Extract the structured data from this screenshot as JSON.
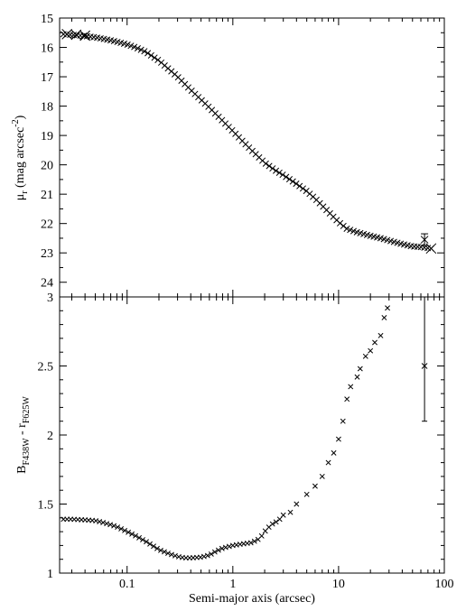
{
  "chart_data": [
    {
      "type": "scatter",
      "panel": "top",
      "title": "",
      "xlabel": "Semi-major axis (arcsec)",
      "ylabel": "μ_r (mag arcsec^-2)",
      "ylabel_parts": {
        "base": "μ",
        "sub": "r",
        "mid": " (mag arcsec",
        "sup": "-2",
        "end": ")"
      },
      "xscale": "log",
      "xlim": [
        0.023,
        100
      ],
      "ylim": [
        24.5,
        15
      ],
      "y_inverted": true,
      "y_ticks": [
        "15",
        "16",
        "17",
        "18",
        "19",
        "20",
        "21",
        "22",
        "23",
        "24"
      ],
      "marker": "x",
      "grid": false,
      "profile": [
        [
          0.025,
          15.55
        ],
        [
          0.03,
          15.57
        ],
        [
          0.04,
          15.61
        ],
        [
          0.05,
          15.66
        ],
        [
          0.06,
          15.71
        ],
        [
          0.07,
          15.76
        ],
        [
          0.08,
          15.81
        ],
        [
          0.1,
          15.9
        ],
        [
          0.12,
          16.0
        ],
        [
          0.15,
          16.15
        ],
        [
          0.2,
          16.45
        ],
        [
          0.25,
          16.75
        ],
        [
          0.3,
          17.0
        ],
        [
          0.4,
          17.45
        ],
        [
          0.5,
          17.78
        ],
        [
          0.6,
          18.05
        ],
        [
          0.8,
          18.5
        ],
        [
          1.0,
          18.85
        ],
        [
          1.2,
          19.15
        ],
        [
          1.5,
          19.5
        ],
        [
          2.0,
          19.93
        ],
        [
          2.5,
          20.18
        ],
        [
          3.0,
          20.35
        ],
        [
          4.0,
          20.65
        ],
        [
          5.0,
          20.9
        ],
        [
          6.0,
          21.15
        ],
        [
          8.0,
          21.6
        ],
        [
          10.0,
          21.95
        ],
        [
          12.0,
          22.18
        ],
        [
          15.0,
          22.3
        ],
        [
          20.0,
          22.42
        ],
        [
          25.0,
          22.5
        ],
        [
          30.0,
          22.58
        ],
        [
          40.0,
          22.7
        ],
        [
          50.0,
          22.78
        ],
        [
          60.0,
          22.8
        ],
        [
          75.0,
          22.85
        ]
      ],
      "big_markers": [
        [
          0.027,
          15.55
        ],
        [
          0.033,
          15.57
        ],
        [
          0.04,
          15.6
        ],
        [
          75.0,
          22.85
        ]
      ],
      "errorbar": {
        "x": 65,
        "y": 22.55,
        "low": 22.35,
        "high": 22.75
      }
    },
    {
      "type": "scatter",
      "panel": "bottom",
      "title": "",
      "xlabel": "Semi-major axis (arcsec)",
      "ylabel": "B_F438W - r_F625W",
      "ylabel_parts": {
        "b": "B",
        "bsub": "F438W",
        "mid": " - r",
        "rsub": "F625W"
      },
      "xscale": "log",
      "xlim": [
        0.023,
        100
      ],
      "ylim": [
        1,
        3
      ],
      "y_ticks": [
        "1",
        "1.5",
        "2",
        "2.5",
        "3"
      ],
      "x_ticks": [
        "0.1",
        "1",
        "10",
        "100"
      ],
      "marker": "x",
      "grid": false,
      "profile": [
        [
          0.025,
          1.39
        ],
        [
          0.03,
          1.39
        ],
        [
          0.04,
          1.385
        ],
        [
          0.05,
          1.38
        ],
        [
          0.06,
          1.365
        ],
        [
          0.07,
          1.35
        ],
        [
          0.08,
          1.335
        ],
        [
          0.1,
          1.3
        ],
        [
          0.12,
          1.27
        ],
        [
          0.15,
          1.23
        ],
        [
          0.2,
          1.17
        ],
        [
          0.25,
          1.14
        ],
        [
          0.3,
          1.12
        ],
        [
          0.35,
          1.11
        ],
        [
          0.4,
          1.11
        ],
        [
          0.5,
          1.115
        ],
        [
          0.6,
          1.13
        ],
        [
          0.7,
          1.16
        ],
        [
          0.8,
          1.18
        ],
        [
          1.0,
          1.2
        ],
        [
          1.2,
          1.21
        ],
        [
          1.5,
          1.22
        ],
        [
          1.8,
          1.25
        ],
        [
          2.0,
          1.3
        ],
        [
          2.3,
          1.35
        ],
        [
          2.7,
          1.38
        ],
        [
          3.0,
          1.42
        ],
        [
          3.5,
          1.44
        ],
        [
          4.0,
          1.5
        ],
        [
          5.0,
          1.57
        ],
        [
          6.0,
          1.63
        ],
        [
          7.0,
          1.7
        ],
        [
          8.0,
          1.8
        ],
        [
          9.0,
          1.87
        ],
        [
          10.0,
          1.97
        ],
        [
          11.0,
          2.1
        ],
        [
          12.0,
          2.26
        ],
        [
          13.0,
          2.35
        ],
        [
          15.0,
          2.42
        ],
        [
          16.0,
          2.48
        ],
        [
          18.0,
          2.57
        ],
        [
          20.0,
          2.61
        ],
        [
          22.0,
          2.67
        ],
        [
          25.0,
          2.72
        ],
        [
          27.0,
          2.85
        ],
        [
          29.0,
          2.92
        ]
      ],
      "errorbar": {
        "x": 65,
        "y": 2.5,
        "low": 2.1,
        "high": 3.0
      }
    }
  ]
}
